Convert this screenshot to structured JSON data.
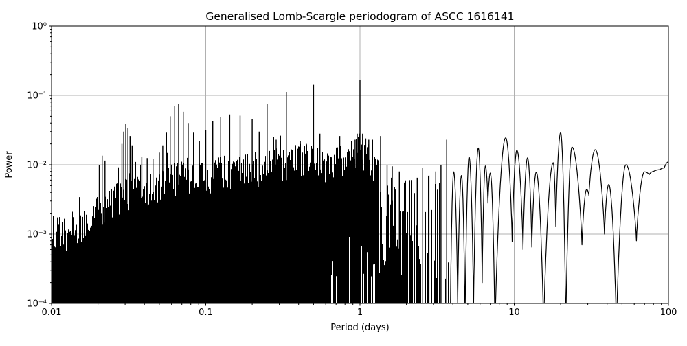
{
  "chart_data": {
    "type": "line",
    "title": "Generalised Lomb-Scargle periodogram of ASCC 1616141",
    "xlabel": "Period (days)",
    "ylabel": "Power",
    "xscale": "log",
    "yscale": "log",
    "xlim": [
      0.01,
      100
    ],
    "ylim": [
      0.0001,
      1
    ],
    "grid": true,
    "legend": false,
    "line_color": "#000000",
    "grid_color": "#b0b0b0",
    "background_color": "#ffffff",
    "x_ticks": [
      {
        "value": 0.01,
        "label": "0.01"
      },
      {
        "value": 0.1,
        "label": "0.1"
      },
      {
        "value": 1,
        "label": "1"
      },
      {
        "value": 10,
        "label": "10"
      },
      {
        "value": 100,
        "label": "100"
      }
    ],
    "y_ticks": [
      {
        "value": 1,
        "label": "10⁰"
      },
      {
        "value": 0.1,
        "label": "10⁻¹"
      },
      {
        "value": 0.01,
        "label": "10⁻²"
      },
      {
        "value": 0.001,
        "label": "10⁻³"
      },
      {
        "value": 0.0001,
        "label": "10⁻⁴"
      }
    ],
    "dense_max_period": 1.32,
    "spike_max_period": 3.85,
    "noise_envelope": [
      [
        0.01,
        0.0015
      ],
      [
        0.013,
        0.0013
      ],
      [
        0.016,
        0.0018
      ],
      [
        0.02,
        0.0032
      ],
      [
        0.025,
        0.004
      ],
      [
        0.03,
        0.005
      ],
      [
        0.04,
        0.0055
      ],
      [
        0.05,
        0.0065
      ],
      [
        0.065,
        0.009
      ],
      [
        0.08,
        0.0085
      ],
      [
        0.1,
        0.009
      ],
      [
        0.13,
        0.011
      ],
      [
        0.17,
        0.011
      ],
      [
        0.22,
        0.012
      ],
      [
        0.3,
        0.014
      ],
      [
        0.4,
        0.016
      ],
      [
        0.5,
        0.015
      ],
      [
        0.6,
        0.014
      ],
      [
        0.75,
        0.016
      ],
      [
        0.9,
        0.02
      ],
      [
        1.0,
        0.024
      ],
      [
        1.1,
        0.018
      ],
      [
        1.2,
        0.012
      ],
      [
        1.32,
        0.009
      ],
      [
        1.6,
        0.008
      ],
      [
        2.0,
        0.006
      ],
      [
        2.6,
        0.0065
      ],
      [
        3.3,
        0.008
      ],
      [
        3.85,
        0.008
      ]
    ],
    "peaks": [
      [
        0.0204,
        0.01
      ],
      [
        0.0213,
        0.0135
      ],
      [
        0.0222,
        0.0115
      ],
      [
        0.0286,
        0.02
      ],
      [
        0.0294,
        0.03
      ],
      [
        0.0303,
        0.039
      ],
      [
        0.0313,
        0.034
      ],
      [
        0.0323,
        0.026
      ],
      [
        0.0333,
        0.019
      ],
      [
        0.0385,
        0.013
      ],
      [
        0.0417,
        0.0125
      ],
      [
        0.0455,
        0.012
      ],
      [
        0.05,
        0.015
      ],
      [
        0.0526,
        0.019
      ],
      [
        0.0556,
        0.029
      ],
      [
        0.0588,
        0.05
      ],
      [
        0.0625,
        0.071
      ],
      [
        0.0667,
        0.076
      ],
      [
        0.0714,
        0.058
      ],
      [
        0.0769,
        0.04
      ],
      [
        0.0833,
        0.029
      ],
      [
        0.0909,
        0.022
      ],
      [
        0.1,
        0.032
      ],
      [
        0.111,
        0.043
      ],
      [
        0.125,
        0.049
      ],
      [
        0.143,
        0.053
      ],
      [
        0.167,
        0.051
      ],
      [
        0.2,
        0.046
      ],
      [
        0.222,
        0.03
      ],
      [
        0.25,
        0.076
      ],
      [
        0.286,
        0.023
      ],
      [
        0.333,
        0.112
      ],
      [
        0.41,
        0.022
      ],
      [
        0.45,
        0.02
      ],
      [
        0.5,
        0.142
      ],
      [
        0.55,
        0.028
      ],
      [
        0.74,
        0.026
      ],
      [
        0.93,
        0.023
      ],
      [
        0.96,
        0.028
      ],
      [
        1.0,
        0.165
      ],
      [
        1.04,
        0.028
      ],
      [
        1.09,
        0.024
      ],
      [
        1.14,
        0.023
      ],
      [
        1.36,
        0.026
      ],
      [
        1.5,
        0.01
      ],
      [
        1.62,
        0.0095
      ],
      [
        1.8,
        0.008
      ],
      [
        2.1,
        0.006
      ],
      [
        2.35,
        0.0065
      ],
      [
        2.55,
        0.009
      ],
      [
        2.8,
        0.007
      ],
      [
        3.1,
        0.008
      ],
      [
        3.35,
        0.01
      ],
      [
        3.65,
        0.023
      ]
    ],
    "resolved_curve": [
      [
        3.85,
        5e-05
      ],
      [
        4.05,
        0.0079
      ],
      [
        4.3,
        0.0001
      ],
      [
        4.55,
        0.007
      ],
      [
        4.8,
        5e-05
      ],
      [
        5.1,
        0.013
      ],
      [
        5.45,
        8e-05
      ],
      [
        5.85,
        0.0175
      ],
      [
        6.2,
        0.0002
      ],
      [
        6.5,
        0.0096
      ],
      [
        6.75,
        0.0028
      ],
      [
        7.0,
        0.0076
      ],
      [
        7.5,
        4e-05
      ],
      [
        8.8,
        0.0245
      ],
      [
        9.7,
        0.00078
      ],
      [
        10.4,
        0.0162
      ],
      [
        11.4,
        0.0006
      ],
      [
        12.2,
        0.0126
      ],
      [
        13.0,
        0.00065
      ],
      [
        13.9,
        0.0078
      ],
      [
        15.5,
        4e-05
      ],
      [
        17.9,
        0.0107
      ],
      [
        18.6,
        0.0013
      ],
      [
        20.0,
        0.029
      ],
      [
        21.6,
        4e-05
      ],
      [
        23.7,
        0.018
      ],
      [
        27.5,
        0.0007
      ],
      [
        29.5,
        0.0044
      ],
      [
        30.5,
        0.0036
      ],
      [
        33.5,
        0.0165
      ],
      [
        38.5,
        0.001
      ],
      [
        41.0,
        0.0052
      ],
      [
        46.0,
        4e-05
      ],
      [
        53.0,
        0.01
      ],
      [
        62.0,
        0.0008
      ],
      [
        70.0,
        0.0079
      ],
      [
        75.0,
        0.0072
      ],
      [
        80.0,
        0.008
      ],
      [
        88.0,
        0.0085
      ],
      [
        94.0,
        0.009
      ],
      [
        100.0,
        0.011
      ]
    ]
  }
}
